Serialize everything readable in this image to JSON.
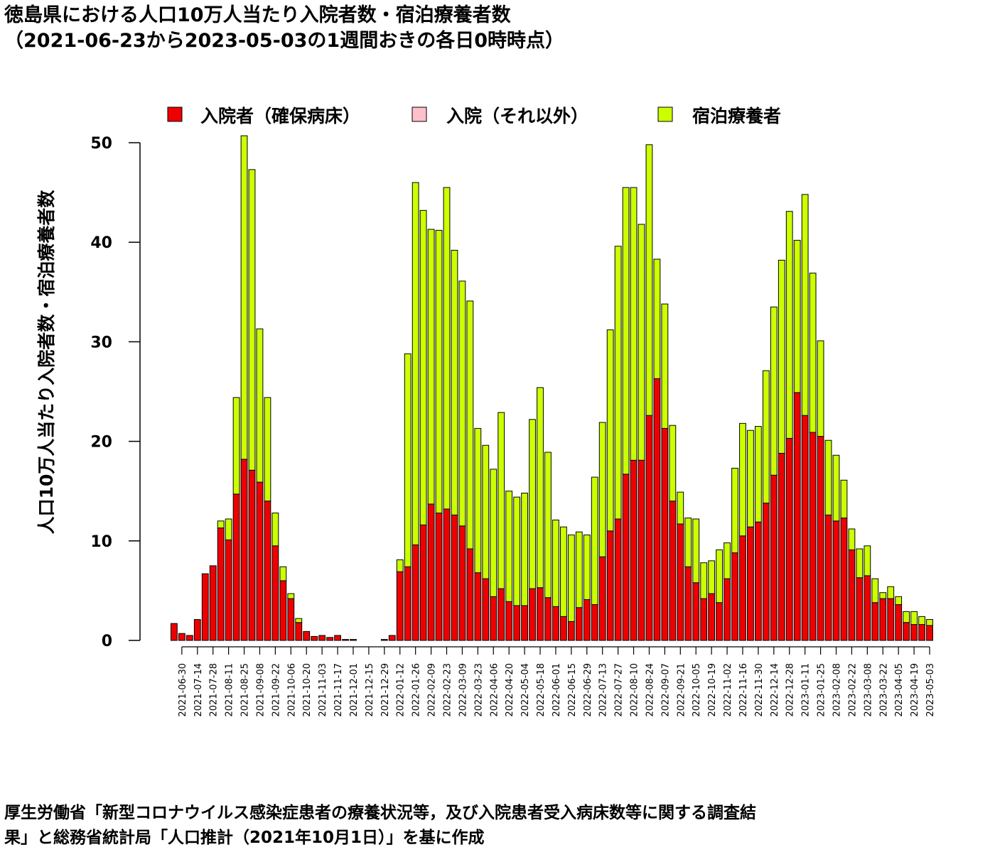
{
  "title": {
    "line1": "徳島県における人口10万人当たり入院者数・宿泊療養者数",
    "line2": "（2021-06-23から2023-05-03の1週間おきの各日0時時点）"
  },
  "footer": {
    "line1": "厚生労働省「新型コロナウイルス感染症患者の療養状況等，及び入院患者受入病床数等に関する調査結",
    "line2": "果」と総務省統計局「人口推計（2021年10月1日）」を基に作成"
  },
  "colors": {
    "hosp": "#ee0000",
    "other": "#ffc0cb",
    "hotel": "#ccff00"
  },
  "chart_data": {
    "type": "bar",
    "stacked": true,
    "ylabel": "人口10万人当たり入院者数・宿泊療養者数",
    "ylim": [
      0,
      50
    ],
    "yticks": [
      0,
      10,
      20,
      30,
      40,
      50
    ],
    "legend": {
      "position": "top"
    },
    "dates": [
      "2021-06-23",
      "2021-06-30",
      "2021-07-07",
      "2021-07-14",
      "2021-07-21",
      "2021-07-28",
      "2021-08-04",
      "2021-08-11",
      "2021-08-18",
      "2021-08-25",
      "2021-09-01",
      "2021-09-08",
      "2021-09-15",
      "2021-09-22",
      "2021-09-29",
      "2021-10-06",
      "2021-10-13",
      "2021-10-20",
      "2021-10-27",
      "2021-11-03",
      "2021-11-10",
      "2021-11-17",
      "2021-11-24",
      "2021-12-01",
      "2021-12-08",
      "2021-12-15",
      "2021-12-22",
      "2021-12-29",
      "2022-01-05",
      "2022-01-12",
      "2022-01-19",
      "2022-01-26",
      "2022-02-02",
      "2022-02-09",
      "2022-02-16",
      "2022-02-23",
      "2022-03-02",
      "2022-03-09",
      "2022-03-16",
      "2022-03-23",
      "2022-03-30",
      "2022-04-06",
      "2022-04-13",
      "2022-04-20",
      "2022-04-27",
      "2022-05-04",
      "2022-05-11",
      "2022-05-18",
      "2022-05-25",
      "2022-06-01",
      "2022-06-08",
      "2022-06-15",
      "2022-06-22",
      "2022-06-29",
      "2022-07-06",
      "2022-07-13",
      "2022-07-20",
      "2022-07-27",
      "2022-08-03",
      "2022-08-10",
      "2022-08-17",
      "2022-08-24",
      "2022-08-31",
      "2022-09-07",
      "2022-09-14",
      "2022-09-21",
      "2022-09-28",
      "2022-10-05",
      "2022-10-12",
      "2022-10-19",
      "2022-10-26",
      "2022-11-02",
      "2022-11-09",
      "2022-11-16",
      "2022-11-23",
      "2022-11-30",
      "2022-12-07",
      "2022-12-14",
      "2022-12-21",
      "2022-12-28",
      "2023-01-04",
      "2023-01-11",
      "2023-01-18",
      "2023-01-25",
      "2023-02-01",
      "2023-02-08",
      "2023-02-15",
      "2023-02-22",
      "2023-03-01",
      "2023-03-08",
      "2023-03-15",
      "2023-03-22",
      "2023-03-29",
      "2023-04-05",
      "2023-04-12",
      "2023-04-19",
      "2023-04-26",
      "2023-05-03"
    ],
    "xtick_labels": [
      "2021-06-30",
      "2021-07-14",
      "2021-07-28",
      "2021-08-11",
      "2021-08-25",
      "2021-09-08",
      "2021-09-22",
      "2021-10-06",
      "2021-10-20",
      "2021-11-03",
      "2021-11-17",
      "2021-12-01",
      "2021-12-15",
      "2021-12-29",
      "2022-01-12",
      "2022-01-26",
      "2022-02-09",
      "2022-02-23",
      "2022-03-09",
      "2022-03-23",
      "2022-04-06",
      "2022-04-20",
      "2022-05-04",
      "2022-05-18",
      "2022-06-01",
      "2022-06-15",
      "2022-06-29",
      "2022-07-13",
      "2022-07-27",
      "2022-08-10",
      "2022-08-24",
      "2022-09-07",
      "2022-09-21",
      "2022-10-05",
      "2022-10-19",
      "2022-11-02",
      "2022-11-16",
      "2022-11-30",
      "2022-12-14",
      "2022-12-28",
      "2023-01-11",
      "2023-01-25",
      "2023-02-08",
      "2023-02-22",
      "2023-03-08",
      "2023-03-22",
      "2023-04-05",
      "2023-04-19",
      "2023-05-03"
    ],
    "series": [
      {
        "name": "入院者（確保病床）",
        "color": "#ee0000",
        "values": [
          1.7,
          0.7,
          0.5,
          2.1,
          6.7,
          7.5,
          11.3,
          10.1,
          14.7,
          18.2,
          17.1,
          15.9,
          14.0,
          9.5,
          6.0,
          4.2,
          1.8,
          0.9,
          0.4,
          0.5,
          0.3,
          0.5,
          0.1,
          0.1,
          0.0,
          0.0,
          0.0,
          0.1,
          0.5,
          6.9,
          7.4,
          9.6,
          11.6,
          13.7,
          12.8,
          13.2,
          12.6,
          11.5,
          9.2,
          6.8,
          6.2,
          4.4,
          5.2,
          3.9,
          3.5,
          3.5,
          5.2,
          5.3,
          4.3,
          3.4,
          2.4,
          1.9,
          3.3,
          4.1,
          3.6,
          8.4,
          11.0,
          12.2,
          16.7,
          18.1,
          18.1,
          22.6,
          26.3,
          21.3,
          14.0,
          11.7,
          7.4,
          5.8,
          4.2,
          4.7,
          3.8,
          6.2,
          8.8,
          10.5,
          11.4,
          11.9,
          13.8,
          16.6,
          18.8,
          20.3,
          24.9,
          22.6,
          20.9,
          20.5,
          12.6,
          12.0,
          12.3,
          9.1,
          6.3,
          6.5,
          3.8,
          4.2,
          4.2,
          3.6,
          1.8,
          1.6,
          1.6,
          1.5
        ]
      },
      {
        "name": "入院（それ以外）",
        "color": "#ffc0cb",
        "values": [
          0,
          0,
          0,
          0,
          0,
          0,
          0,
          0,
          0,
          0,
          0,
          0,
          0,
          0,
          0,
          0,
          0,
          0,
          0,
          0,
          0,
          0,
          0,
          0,
          0,
          0,
          0,
          0,
          0,
          0,
          0,
          0,
          0,
          0,
          0,
          0,
          0,
          0,
          0,
          0,
          0,
          0,
          0,
          0,
          0,
          0,
          0,
          0,
          0,
          0,
          0,
          0,
          0,
          0,
          0,
          0,
          0,
          0,
          0,
          0,
          0,
          0,
          0,
          0,
          0,
          0,
          0,
          0,
          0,
          0,
          0,
          0,
          0,
          0,
          0,
          0,
          0,
          0,
          0,
          0,
          0,
          0,
          0,
          0,
          0,
          0,
          0,
          0,
          0,
          0,
          0,
          0,
          0,
          0,
          0,
          0,
          0,
          0
        ]
      },
      {
        "name": "宿泊療養者",
        "color": "#ccff00",
        "values": [
          0,
          0,
          0,
          0,
          0,
          0,
          0.7,
          2.1,
          9.7,
          32.5,
          30.2,
          15.4,
          10.4,
          3.3,
          1.4,
          0.5,
          0.4,
          0,
          0,
          0,
          0,
          0,
          0,
          0,
          0,
          0,
          0,
          0,
          0,
          1.2,
          21.4,
          36.4,
          31.6,
          27.6,
          28.4,
          32.3,
          26.6,
          24.6,
          24.9,
          14.5,
          13.4,
          12.8,
          17.7,
          11.1,
          10.9,
          11.3,
          17.0,
          20.1,
          14.6,
          8.7,
          9.0,
          8.7,
          7.6,
          6.5,
          12.8,
          13.5,
          20.2,
          27.4,
          28.8,
          27.4,
          23.7,
          27.2,
          12.0,
          12.5,
          7.6,
          3.2,
          4.9,
          6.4,
          3.6,
          3.3,
          5.3,
          3.6,
          8.5,
          11.3,
          9.7,
          9.6,
          13.3,
          16.9,
          19.4,
          22.8,
          15.3,
          22.2,
          16.0,
          9.6,
          7.5,
          6.6,
          3.8,
          2.1,
          2.9,
          3.0,
          2.4,
          0.6,
          1.2,
          0.8,
          1.1,
          1.3,
          0.8,
          0.6
        ]
      }
    ]
  }
}
